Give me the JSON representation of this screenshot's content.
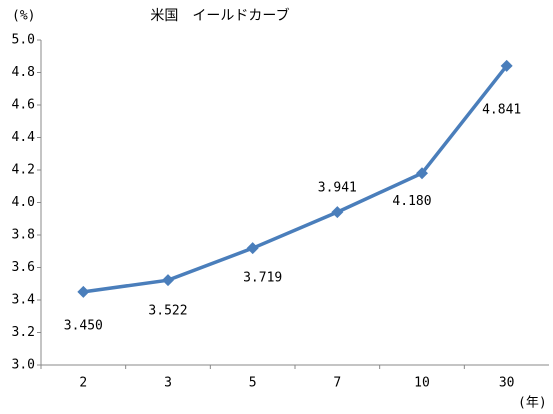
{
  "chart_data": {
    "type": "line",
    "title": "米国　イールドカーブ",
    "y_label": "(%)",
    "x_label": "(年)",
    "categories": [
      "2",
      "3",
      "5",
      "7",
      "10",
      "30"
    ],
    "values": [
      3.45,
      3.522,
      3.719,
      3.941,
      4.18,
      4.841
    ],
    "value_labels": [
      "3.450",
      "3.522",
      "3.719",
      "3.941",
      "4.180",
      "4.841"
    ],
    "color": "#4a7ebb",
    "ylim": [
      3,
      5
    ],
    "yticks": [
      {
        "value": 3,
        "label": "3.0"
      },
      {
        "value": 3.2,
        "label": "3.2"
      },
      {
        "value": 3.4,
        "label": "3.4"
      },
      {
        "value": 3.6,
        "label": "3.6"
      },
      {
        "value": 3.8,
        "label": "3.8"
      },
      {
        "value": 4,
        "label": "4.0"
      },
      {
        "value": 4.2,
        "label": "4.2"
      },
      {
        "value": 4.4,
        "label": "4.4"
      },
      {
        "value": 4.6,
        "label": "4.6"
      },
      {
        "value": 4.8,
        "label": "4.8"
      },
      {
        "value": 5,
        "label": "5.0"
      }
    ],
    "grid": false
  }
}
